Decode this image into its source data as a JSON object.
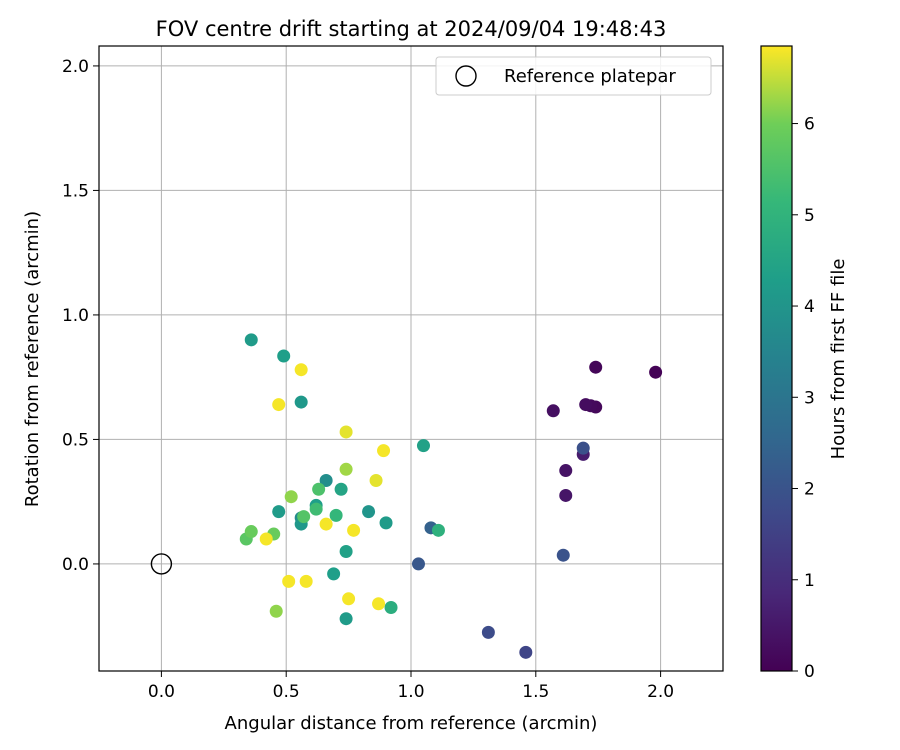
{
  "chart_data": {
    "type": "scatter",
    "title": "FOV centre drift starting at 2024/09/04 19:48:43",
    "xlabel": "Angular distance from reference (arcmin)",
    "ylabel": "Rotation from reference (arcmin)",
    "xlim": [
      -0.25,
      2.25
    ],
    "ylim": [
      -0.43,
      2.08
    ],
    "xticks": [
      0.0,
      0.5,
      1.0,
      1.5,
      2.0
    ],
    "xtick_labels": [
      "0.0",
      "0.5",
      "1.0",
      "1.5",
      "2.0"
    ],
    "yticks": [
      0.0,
      0.5,
      1.0,
      1.5,
      2.0
    ],
    "ytick_labels": [
      "0.0",
      "0.5",
      "1.0",
      "1.5",
      "2.0"
    ],
    "grid": true,
    "legend": {
      "placement": "upper-right",
      "label": "Reference platepar"
    },
    "reference_point": {
      "x": 0.0,
      "y": 0.0
    },
    "colorbar": {
      "label": "Hours from first FF file",
      "colormap": "viridis",
      "range": [
        0,
        6.85
      ],
      "ticks": [
        0,
        1,
        2,
        3,
        4,
        5,
        6
      ],
      "tick_labels": [
        "0",
        "1",
        "2",
        "3",
        "4",
        "5",
        "6"
      ]
    },
    "points": [
      {
        "x": 1.98,
        "y": 0.77,
        "c": 0.05
      },
      {
        "x": 1.74,
        "y": 0.79,
        "c": 0.1
      },
      {
        "x": 1.74,
        "y": 0.63,
        "c": 0.15
      },
      {
        "x": 1.72,
        "y": 0.635,
        "c": 0.2
      },
      {
        "x": 1.7,
        "y": 0.64,
        "c": 0.25
      },
      {
        "x": 1.57,
        "y": 0.615,
        "c": 0.3
      },
      {
        "x": 1.62,
        "y": 0.375,
        "c": 0.4
      },
      {
        "x": 1.62,
        "y": 0.275,
        "c": 0.45
      },
      {
        "x": 1.69,
        "y": 0.44,
        "c": 0.6
      },
      {
        "x": 1.69,
        "y": 0.465,
        "c": 1.9
      },
      {
        "x": 1.61,
        "y": 0.035,
        "c": 2.0
      },
      {
        "x": 1.46,
        "y": -0.355,
        "c": 1.6
      },
      {
        "x": 1.31,
        "y": -0.275,
        "c": 1.8
      },
      {
        "x": 1.03,
        "y": 0.0,
        "c": 2.1
      },
      {
        "x": 1.08,
        "y": 0.145,
        "c": 2.4
      },
      {
        "x": 0.36,
        "y": 0.9,
        "c": 4.2
      },
      {
        "x": 0.49,
        "y": 0.835,
        "c": 4.3
      },
      {
        "x": 0.56,
        "y": 0.65,
        "c": 4.1
      },
      {
        "x": 1.05,
        "y": 0.475,
        "c": 4.4
      },
      {
        "x": 0.66,
        "y": 0.335,
        "c": 3.8
      },
      {
        "x": 0.72,
        "y": 0.3,
        "c": 4.5
      },
      {
        "x": 0.47,
        "y": 0.21,
        "c": 4.2
      },
      {
        "x": 0.56,
        "y": 0.185,
        "c": 3.7
      },
      {
        "x": 0.56,
        "y": 0.16,
        "c": 4.1
      },
      {
        "x": 0.62,
        "y": 0.235,
        "c": 4.3
      },
      {
        "x": 0.83,
        "y": 0.21,
        "c": 4.0
      },
      {
        "x": 0.9,
        "y": 0.165,
        "c": 4.2
      },
      {
        "x": 1.11,
        "y": 0.135,
        "c": 4.9
      },
      {
        "x": 0.74,
        "y": 0.05,
        "c": 4.4
      },
      {
        "x": 0.69,
        "y": -0.04,
        "c": 4.3
      },
      {
        "x": 0.74,
        "y": -0.22,
        "c": 4.2
      },
      {
        "x": 0.92,
        "y": -0.175,
        "c": 4.8
      },
      {
        "x": 0.62,
        "y": 0.22,
        "c": 5.3
      },
      {
        "x": 0.7,
        "y": 0.195,
        "c": 5.1
      },
      {
        "x": 0.63,
        "y": 0.3,
        "c": 5.5
      },
      {
        "x": 0.57,
        "y": 0.19,
        "c": 5.6
      },
      {
        "x": 0.34,
        "y": 0.1,
        "c": 5.7
      },
      {
        "x": 0.36,
        "y": 0.13,
        "c": 5.9
      },
      {
        "x": 0.45,
        "y": 0.12,
        "c": 5.9
      },
      {
        "x": 0.52,
        "y": 0.27,
        "c": 6.2
      },
      {
        "x": 0.74,
        "y": 0.38,
        "c": 6.3
      },
      {
        "x": 0.46,
        "y": -0.19,
        "c": 6.2
      },
      {
        "x": 0.56,
        "y": 0.78,
        "c": 6.8
      },
      {
        "x": 0.47,
        "y": 0.64,
        "c": 6.8
      },
      {
        "x": 0.74,
        "y": 0.53,
        "c": 6.7
      },
      {
        "x": 0.89,
        "y": 0.455,
        "c": 6.8
      },
      {
        "x": 0.86,
        "y": 0.335,
        "c": 6.7
      },
      {
        "x": 0.77,
        "y": 0.135,
        "c": 6.8
      },
      {
        "x": 0.66,
        "y": 0.16,
        "c": 6.8
      },
      {
        "x": 0.42,
        "y": 0.1,
        "c": 6.8
      },
      {
        "x": 0.51,
        "y": -0.07,
        "c": 6.8
      },
      {
        "x": 0.58,
        "y": -0.07,
        "c": 6.8
      },
      {
        "x": 0.75,
        "y": -0.14,
        "c": 6.8
      },
      {
        "x": 0.87,
        "y": -0.16,
        "c": 6.8
      }
    ]
  }
}
